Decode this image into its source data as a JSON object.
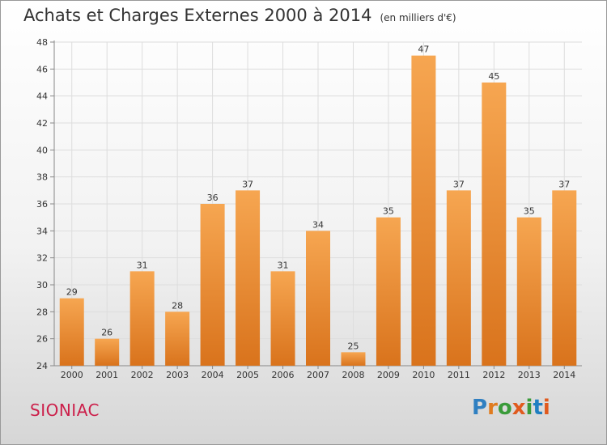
{
  "title": "Achats et Charges Externes 2000 à 2014",
  "subtitle": "(en milliers d'€)",
  "place": "SIONIAC",
  "logo": {
    "text": "Proxiti",
    "colors": [
      "#2f7fc1",
      "#e07b1f",
      "#3a9b3a",
      "#e05a1e",
      "#3a9b3a",
      "#1f7fc1",
      "#e05a1e"
    ]
  },
  "colors": {
    "bar_top": "#f6a651",
    "bar_bottom": "#d9731c",
    "title": "#333333",
    "place": "#cc1f4a"
  },
  "chart_data": {
    "type": "bar",
    "categories": [
      "2000",
      "2001",
      "2002",
      "2003",
      "2004",
      "2005",
      "2006",
      "2007",
      "2008",
      "2009",
      "2010",
      "2011",
      "2012",
      "2013",
      "2014"
    ],
    "values": [
      29,
      26,
      31,
      28,
      36,
      37,
      31,
      34,
      25,
      35,
      47,
      37,
      45,
      35,
      37
    ],
    "ylim": [
      24,
      48
    ],
    "yticks": [
      24,
      26,
      28,
      30,
      32,
      34,
      36,
      38,
      40,
      42,
      44,
      46,
      48
    ],
    "grid": true,
    "data_labels": true
  }
}
